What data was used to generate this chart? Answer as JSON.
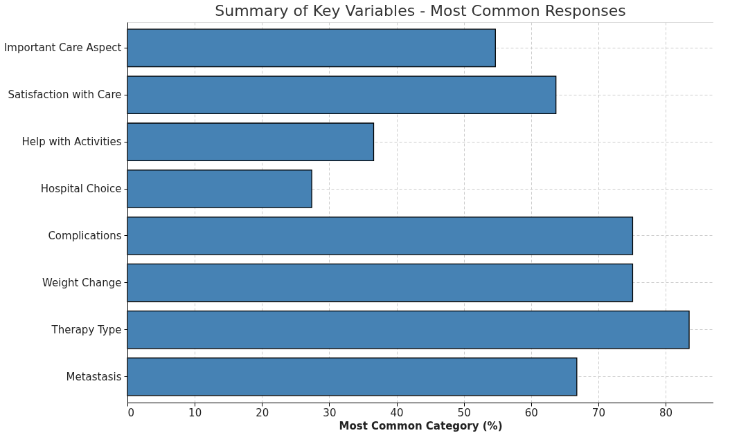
{
  "chart_data": {
    "type": "bar",
    "orientation": "horizontal",
    "title": "Summary of Key Variables - Most Common Responses",
    "xlabel": "Most Common Category (%)",
    "categories": [
      "Important Care Aspect",
      "Satisfaction with Care",
      "Help with Activities",
      "Hospital Choice",
      "Complications",
      "Weight Change",
      "Therapy Type",
      "Metastasis"
    ],
    "values": [
      54.7,
      63.7,
      36.6,
      27.4,
      75.1,
      75.1,
      83.5,
      66.8
    ],
    "color": "#4682b4",
    "xlim": [
      0,
      87.1
    ],
    "xticks": [
      0,
      10,
      20,
      30,
      40,
      50,
      60,
      70,
      80
    ],
    "grid": true
  }
}
